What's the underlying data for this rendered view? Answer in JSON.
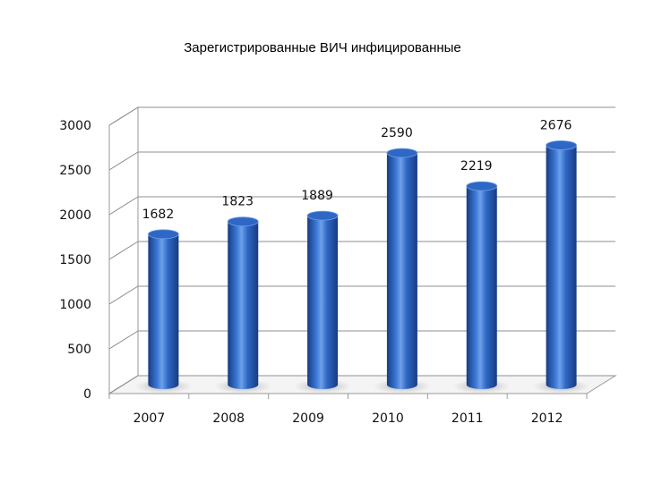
{
  "chart_data": {
    "type": "bar",
    "title": "Зарегистрированные ВИЧ инфицированные",
    "xlabel": "",
    "ylabel": "",
    "categories": [
      "2007",
      "2008",
      "2009",
      "2010",
      "2011",
      "2012"
    ],
    "values": [
      1682,
      1823,
      1889,
      2590,
      2219,
      2676
    ],
    "ylim": [
      0,
      3000
    ],
    "yticks": [
      0,
      500,
      1000,
      1500,
      2000,
      2500,
      3000
    ],
    "data_labels": [
      "1682",
      "1823",
      "1889",
      "2590",
      "2219",
      "2676"
    ],
    "grid": true,
    "legend": "none",
    "bar_color": "#2e67c4",
    "bar_color_dark": "#173c82",
    "bar_color_light": "#6ea0ea"
  }
}
